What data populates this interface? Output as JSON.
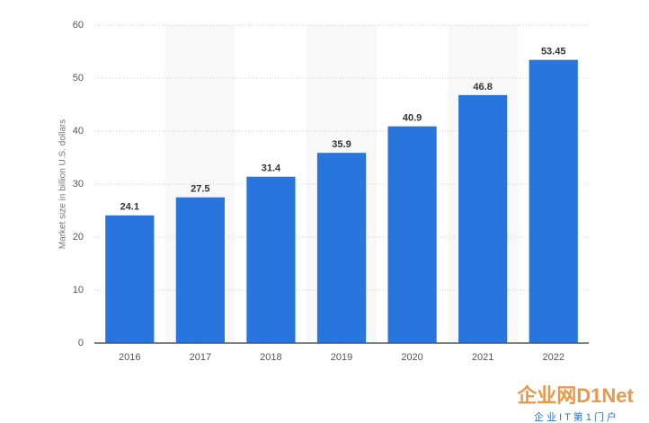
{
  "chart_data": {
    "type": "bar",
    "y_label": "Market size in billion U.S. dollars",
    "categories": [
      "2016",
      "2017",
      "2018",
      "2019",
      "2020",
      "2021",
      "2022"
    ],
    "values": [
      24.1,
      27.5,
      31.4,
      35.9,
      40.9,
      46.8,
      53.45
    ],
    "color": "#2876dd",
    "ylim": [
      0,
      60
    ],
    "yticks": [
      0,
      10,
      20,
      30,
      40,
      50,
      60
    ],
    "grid": true
  },
  "watermark": {
    "logo": "企业网D1Net",
    "slogan": "企 业 I T 第 1 门 户"
  }
}
